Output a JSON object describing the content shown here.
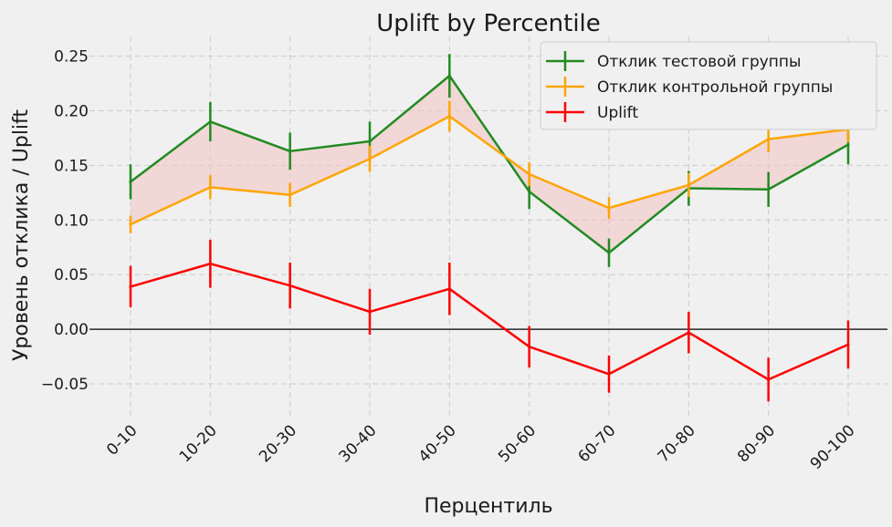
{
  "chart_data": {
    "type": "line",
    "title": "Uplift by Percentile",
    "xlabel": "Перцентиль",
    "ylabel": "Уровень отклика / Uplift",
    "categories": [
      "0-10",
      "10-20",
      "20-30",
      "30-40",
      "40-50",
      "50-60",
      "60-70",
      "70-80",
      "80-90",
      "90-100"
    ],
    "ylim": [
      -0.08,
      0.268
    ],
    "yticks": [
      -0.05,
      0.0,
      0.05,
      0.1,
      0.15,
      0.2,
      0.25
    ],
    "ytick_labels": [
      "−0.05",
      "0.00",
      "0.05",
      "0.10",
      "0.15",
      "0.20",
      "0.25"
    ],
    "grid": true,
    "legend_position": "top-right",
    "series": [
      {
        "name": "Отклик тестовой группы",
        "color": "#228b22",
        "values": [
          0.135,
          0.19,
          0.163,
          0.172,
          0.232,
          0.126,
          0.07,
          0.129,
          0.128,
          0.169
        ],
        "errors": [
          0.016,
          0.018,
          0.017,
          0.018,
          0.02,
          0.016,
          0.013,
          0.016,
          0.016,
          0.018
        ]
      },
      {
        "name": "Отклик контрольной группы",
        "color": "#ffa500",
        "values": [
          0.096,
          0.13,
          0.123,
          0.156,
          0.195,
          0.142,
          0.111,
          0.132,
          0.174,
          0.183
        ],
        "errors": [
          0.008,
          0.011,
          0.011,
          0.012,
          0.014,
          0.011,
          0.01,
          0.011,
          0.012,
          0.012
        ]
      },
      {
        "name": "Uplift",
        "color": "#ff0000",
        "values": [
          0.039,
          0.06,
          0.04,
          0.016,
          0.037,
          -0.016,
          -0.041,
          -0.003,
          -0.046,
          -0.014
        ],
        "errors": [
          0.019,
          0.022,
          0.021,
          0.021,
          0.024,
          0.019,
          0.017,
          0.019,
          0.02,
          0.022
        ]
      }
    ],
    "fill_between": {
      "series": [
        0,
        1
      ],
      "color": "#f4c2c2"
    },
    "zero_line": {
      "value": 0,
      "color": "#000000"
    }
  }
}
